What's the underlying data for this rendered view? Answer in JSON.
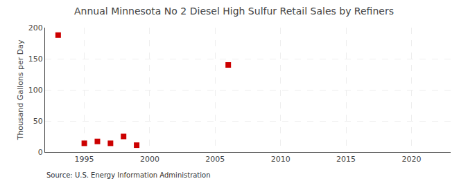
{
  "chart_data": {
    "type": "scatter",
    "title": "Annual Minnesota No 2 Diesel High Sulfur Retail Sales by Refiners",
    "ylabel": "Thousand Gallons per Day",
    "source": "Source: U.S. Energy Information Administration",
    "x": [
      1993,
      1995,
      1996,
      1997,
      1998,
      1999,
      2006
    ],
    "values": [
      188,
      14,
      17,
      14,
      25,
      11,
      140
    ],
    "color": "#cc0000",
    "marker": "square",
    "xlim": [
      1992,
      2023
    ],
    "ylim": [
      0,
      200
    ],
    "xticks": [
      1995,
      2000,
      2005,
      2010,
      2015,
      2020
    ],
    "yticks": [
      0,
      50,
      100,
      150,
      200
    ],
    "grid": true
  }
}
